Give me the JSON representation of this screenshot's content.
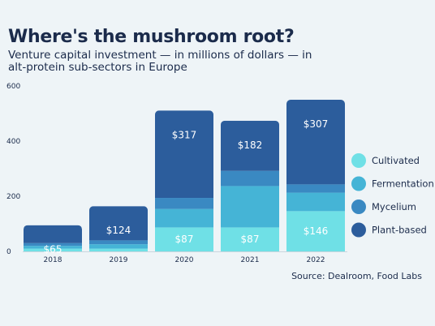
{
  "chart_data": {
    "type": "bar",
    "stacked": true,
    "title": "Where's the mushroom root?",
    "subtitle": "Venture capital investment — in millions of dollars — in alt-protein sub-sectors in Europe",
    "source": "Source: Dealroom, Food Labs",
    "categories": [
      "2018",
      "2019",
      "2020",
      "2021",
      "2022"
    ],
    "ylim": [
      0,
      600
    ],
    "yticks": [
      "600",
      "400",
      "200",
      "0"
    ],
    "ytick_values": [
      600,
      400,
      200,
      0
    ],
    "series": [
      {
        "name": "Cultivated",
        "color": "#6fe0e6",
        "values": [
          10,
          10,
          87,
          87,
          146
        ]
      },
      {
        "name": "Fermentation",
        "color": "#45b4d6",
        "values": [
          10,
          16,
          67,
          150,
          67
        ]
      },
      {
        "name": "Mycelium",
        "color": "#3a89c2",
        "values": [
          10,
          14,
          40,
          55,
          30
        ]
      },
      {
        "name": "Plant-based",
        "color": "#2c5d9c",
        "values": [
          65,
          124,
          317,
          182,
          307
        ]
      }
    ],
    "value_labels": [
      {
        "category": 0,
        "series": 3,
        "text": "$65"
      },
      {
        "category": 1,
        "series": 3,
        "text": "$124"
      },
      {
        "category": 2,
        "series": 3,
        "text": "$317"
      },
      {
        "category": 3,
        "series": 3,
        "text": "$182"
      },
      {
        "category": 4,
        "series": 3,
        "text": "$307"
      },
      {
        "category": 2,
        "series": 0,
        "text": "$87"
      },
      {
        "category": 3,
        "series": 0,
        "text": "$87"
      },
      {
        "category": 4,
        "series": 0,
        "text": "$146"
      }
    ],
    "legend_position": "right",
    "grid": false
  }
}
